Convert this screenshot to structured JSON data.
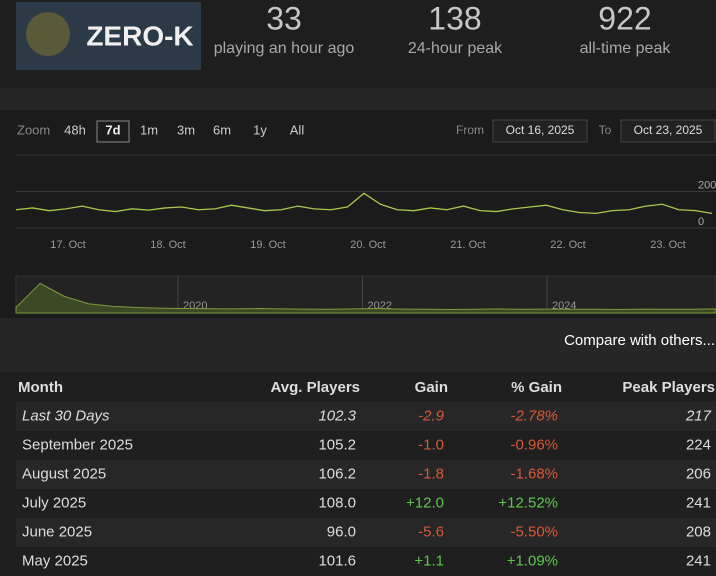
{
  "header": {
    "logo_text": "ZERO-K",
    "stats": [
      {
        "value": "33",
        "label": "playing an hour ago"
      },
      {
        "value": "138",
        "label": "24-hour peak"
      },
      {
        "value": "922",
        "label": "all-time peak"
      }
    ]
  },
  "controls": {
    "zoom_label": "Zoom",
    "zoom_options": [
      "48h",
      "7d",
      "1m",
      "3m",
      "6m",
      "1y",
      "All"
    ],
    "selected": 1,
    "from_label": "From",
    "from": "Oct 16, 2025",
    "to_label": "To",
    "to": "Oct 23, 2025"
  },
  "chart_data": [
    {
      "type": "line",
      "color": "#a8c84a",
      "grid": true,
      "ylim": [
        0,
        400
      ],
      "yticks": [
        0,
        200
      ],
      "xtick_labels": [
        "17. Oct",
        "18. Oct",
        "19. Oct",
        "20. Oct",
        "21. Oct",
        "22. Oct",
        "23. Oct"
      ],
      "values": [
        100,
        110,
        95,
        105,
        120,
        100,
        90,
        105,
        98,
        110,
        115,
        100,
        105,
        125,
        110,
        95,
        100,
        120,
        105,
        100,
        115,
        190,
        130,
        100,
        95,
        110,
        100,
        120,
        95,
        90,
        105,
        115,
        125,
        100,
        85,
        80,
        95,
        100,
        120,
        130,
        100,
        95,
        80
      ]
    },
    {
      "type": "area",
      "color": "#7f9a3a",
      "ylim": [
        0,
        1000
      ],
      "xtick_labels": [
        "2020",
        "2022",
        "2024"
      ],
      "values": [
        150,
        800,
        450,
        250,
        180,
        150,
        130,
        120,
        115,
        110,
        120,
        110,
        105,
        100,
        110,
        120,
        105,
        100,
        95,
        100,
        110,
        100,
        105,
        100,
        100,
        95,
        105,
        100,
        100,
        110
      ]
    }
  ],
  "compare_link": "Compare with others...",
  "table": {
    "columns": [
      "Month",
      "Avg. Players",
      "Gain",
      "% Gain",
      "Peak Players"
    ],
    "rows": [
      [
        "Last 30 Days",
        "102.3",
        "-2.9",
        "-2.78%",
        "217"
      ],
      [
        "September 2025",
        "105.2",
        "-1.0",
        "-0.96%",
        "224"
      ],
      [
        "August 2025",
        "106.2",
        "-1.8",
        "-1.68%",
        "206"
      ],
      [
        "July 2025",
        "108.0",
        "+12.0",
        "+12.52%",
        "241"
      ],
      [
        "June 2025",
        "96.0",
        "-5.6",
        "-5.50%",
        "208"
      ],
      [
        "May 2025",
        "101.6",
        "+1.1",
        "+1.09%",
        "241"
      ]
    ]
  }
}
